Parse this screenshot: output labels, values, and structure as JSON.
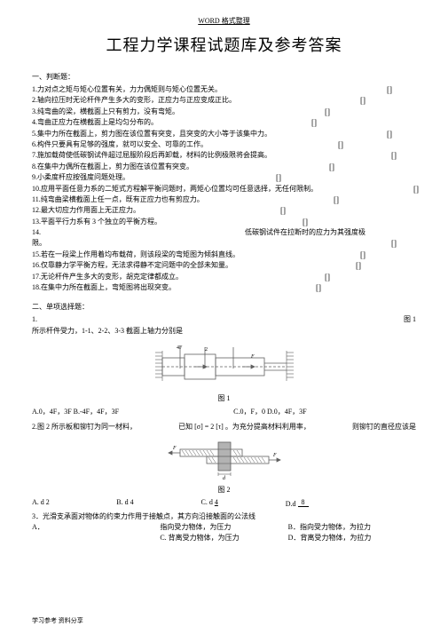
{
  "header": "WORD 格式整理",
  "title": "工程力学课程试题库及参考答案",
  "section1": "一、判断题：",
  "items": [
    {
      "n": "1.",
      "t": "力对点之矩与矩心位置有关，力力偶矩则与矩心位置无关。",
      "br": "[]",
      "bx": 400
    },
    {
      "n": "2.",
      "t": "轴向拉压时无论杆件产生多大的变形，正应力与正应变成正比。",
      "br": "[]",
      "bx": 370
    },
    {
      "n": "3.",
      "t": "纯弯曲的梁，横截面上只有剪力，没有弯矩。",
      "br": "[]",
      "bx": 330
    },
    {
      "n": "4.",
      "t": "弯曲正应力在横截面上是均匀分布的。",
      "br": "[]",
      "bx": 315
    },
    {
      "n": "5.",
      "t": "集中力所在截面上，剪力图在该位置有突变，且突变的大小等于该集中力。",
      "br": "[]",
      "bx": 400
    },
    {
      "n": "6.",
      "t": "构件只要具有足够的强度，就可以安全、可靠的工作。",
      "br": "[]",
      "bx": 345
    },
    {
      "n": "7.",
      "t": "施加载荷使低碳钢试件超过屈服阶段后再卸载，材料的比例极限将会提高。",
      "br": "[]",
      "bx": 405
    },
    {
      "n": "8.",
      "t": "在集中力偶所在截面上，剪力图在该位置有突变。",
      "br": "[]",
      "bx": 335
    },
    {
      "n": "9.",
      "t": "小柔度杆应按强度问题处理。",
      "br": "[]",
      "bx": 275
    },
    {
      "n": "10.",
      "t": "应用平面任意力系的二矩式方程解平衡问题时，两矩心位置均可任意选择，无任何限制。",
      "br": "[]",
      "bx": 430
    },
    {
      "n": "11.",
      "t": "纯弯曲梁横截面上任一点，既有正应力也有剪应力。",
      "br": "[]",
      "bx": 340
    },
    {
      "n": "12.",
      "t": "最大切应力作用面上无正应力。",
      "br": "[]",
      "bx": 280
    },
    {
      "n": "13.",
      "t": "平面平行力系有 3 个独立的平衡方程。",
      "br": "[]",
      "bx": 305
    },
    {
      "n": "14.",
      "t": "",
      "br": "",
      "bx": 0,
      "tail": "低碳钢试件在拉断时的应力为其强度极"
    },
    {
      "n": "",
      "t": "限。",
      "br": "[]",
      "bx": 405
    },
    {
      "n": "15.",
      "t": "若在一段梁上作用着均布载荷，则该段梁的弯矩图为倾斜直线。",
      "br": "[]",
      "bx": 370
    },
    {
      "n": "16.",
      "t": "仅靠静力学平衡方程，无法求得静不定问题中的全部未知量。",
      "br": "[]",
      "bx": 365
    },
    {
      "n": "17.",
      "t": "无论杆件产生多大的变形，胡克定律都成立。",
      "br": "[]",
      "bx": 330
    },
    {
      "n": "18.",
      "t": "在集中力所在截面上，弯矩图将出现突变。",
      "br": "[]",
      "bx": 320
    }
  ],
  "section2": "二、单项选择题：",
  "q1a": "1.",
  "q1tail": "图 1",
  "q1b": "所示杆件受力，1-1、2-2、3-3 截面上轴力分别是",
  "fig1_label": "图 1",
  "q1_opts_left": "A.0，4F，3F  B.-4F，4F，3F",
  "q1_opts_right": "C.0，F，0      D.0，4F，3F",
  "q2a": "2.图 2 所示板和铆钉为同一材料，",
  "q2b": "已知 [σ]",
  "q2b2": "2 [τ] 。为充分提高材料利用率，",
  "q2c": "则铆钉的直径应该是",
  "fig2_label": "图 2",
  "q2_opts": {
    "a": "A. d 2",
    "b": "B. d 4",
    "c": "C. d",
    "d": "D.d"
  },
  "q2_frac": "8",
  "q3": "3．光滑支承面对物体的约束力作用于接触点，其方向沿接触面的公法线",
  "q3a": "A．",
  "q3a2": "指向受力物体，为压力",
  "q3b": "B．指向受力物体，为拉力",
  "q3c": "C. 背离受力物体，为压力",
  "q3d": "D．背离受力物体，为拉力",
  "footer": "学习参考  资料分享",
  "colors": {
    "line": "#606060",
    "hatch": "#5a5a5a",
    "fill": "#808080"
  }
}
